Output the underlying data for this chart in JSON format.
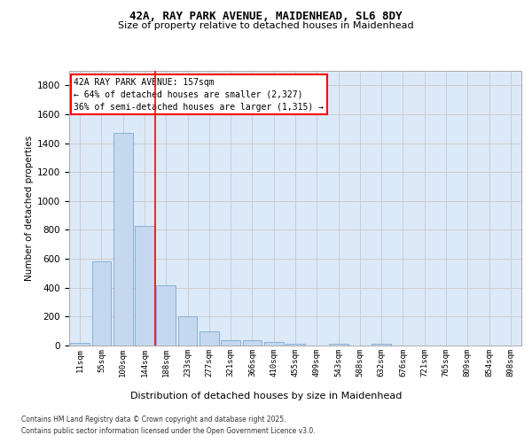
{
  "title1": "42A, RAY PARK AVENUE, MAIDENHEAD, SL6 8DY",
  "title2": "Size of property relative to detached houses in Maidenhead",
  "xlabel": "Distribution of detached houses by size in Maidenhead",
  "ylabel": "Number of detached properties",
  "categories": [
    "11sqm",
    "55sqm",
    "100sqm",
    "144sqm",
    "188sqm",
    "233sqm",
    "277sqm",
    "321sqm",
    "366sqm",
    "410sqm",
    "455sqm",
    "499sqm",
    "543sqm",
    "588sqm",
    "632sqm",
    "676sqm",
    "721sqm",
    "765sqm",
    "809sqm",
    "854sqm",
    "898sqm"
  ],
  "values": [
    20,
    585,
    1470,
    830,
    415,
    200,
    100,
    38,
    35,
    22,
    10,
    0,
    15,
    0,
    10,
    0,
    0,
    0,
    0,
    0,
    0
  ],
  "bar_color": "#c5d8f0",
  "bar_edge_color": "#7aaad0",
  "vline_x": 3.5,
  "vline_color": "red",
  "annotation_text": "42A RAY PARK AVENUE: 157sqm\n← 64% of detached houses are smaller (2,327)\n36% of semi-detached houses are larger (1,315) →",
  "annotation_box_color": "white",
  "annotation_box_edge": "red",
  "ylim": [
    0,
    1900
  ],
  "yticks": [
    0,
    200,
    400,
    600,
    800,
    1000,
    1200,
    1400,
    1600,
    1800
  ],
  "grid_color": "#cccccc",
  "bg_color": "#dce9f8",
  "footer1": "Contains HM Land Registry data © Crown copyright and database right 2025.",
  "footer2": "Contains public sector information licensed under the Open Government Licence v3.0."
}
